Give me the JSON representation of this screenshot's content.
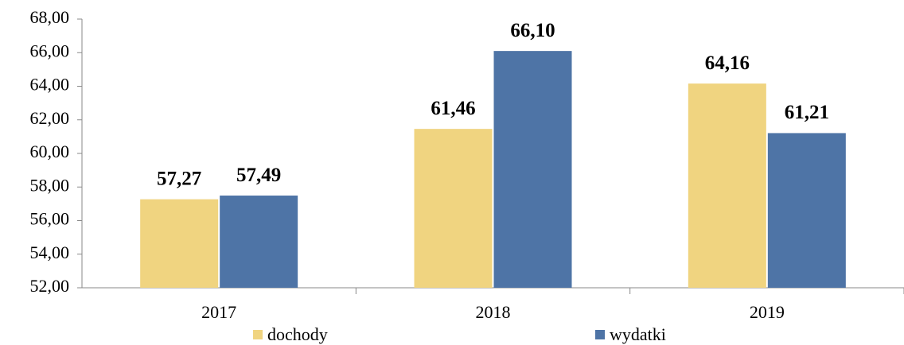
{
  "chart_data": {
    "type": "bar",
    "categories": [
      "2017",
      "2018",
      "2019"
    ],
    "series": [
      {
        "name": "dochody",
        "color": "#f0d480",
        "values": [
          57.27,
          61.46,
          64.16
        ],
        "value_labels": [
          "57,27",
          "61,46",
          "64,16"
        ]
      },
      {
        "name": "wydatki",
        "color": "#4e74a6",
        "values": [
          57.49,
          66.1,
          61.21
        ],
        "value_labels": [
          "57,49",
          "66,10",
          "61,21"
        ]
      }
    ],
    "ylim": [
      52,
      68
    ],
    "yticks": [
      {
        "value": 52,
        "label": "52,00"
      },
      {
        "value": 54,
        "label": "54,00"
      },
      {
        "value": 56,
        "label": "56,00"
      },
      {
        "value": 58,
        "label": "58,00"
      },
      {
        "value": 60,
        "label": "60,00"
      },
      {
        "value": 62,
        "label": "62,00"
      },
      {
        "value": 64,
        "label": "64,00"
      },
      {
        "value": 66,
        "label": "66,00"
      },
      {
        "value": 68,
        "label": "68,00"
      }
    ],
    "grid": false,
    "legend": "bottom"
  }
}
